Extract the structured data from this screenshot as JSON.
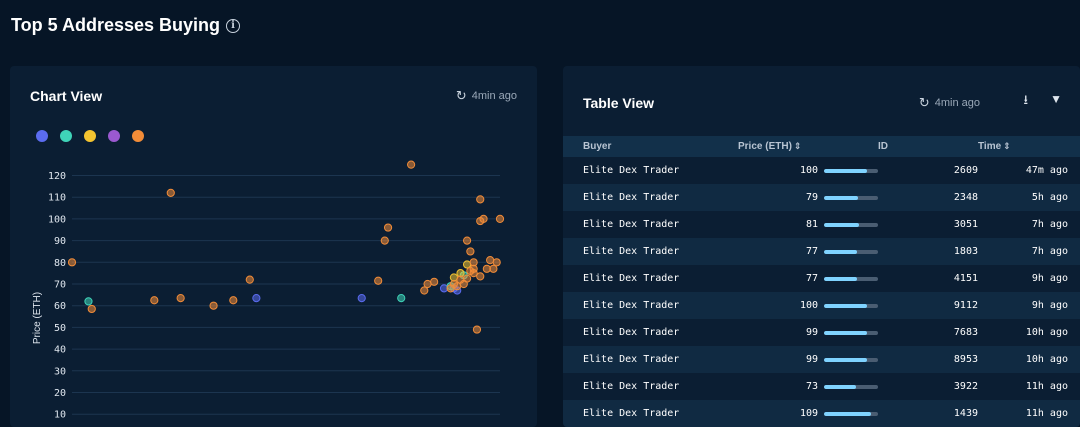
{
  "page": {
    "title": "Top 5 Addresses Buying"
  },
  "chart_panel": {
    "title": "Chart View",
    "updated": "4min ago"
  },
  "table_panel": {
    "title": "Table View",
    "updated": "4min ago"
  },
  "legend": [
    {
      "color": "#5b6cf0"
    },
    {
      "color": "#3fd4b8"
    },
    {
      "color": "#f4c430"
    },
    {
      "color": "#9b59d0"
    },
    {
      "color": "#f28c38"
    }
  ],
  "chart_data": {
    "type": "scatter",
    "ylabel": "Price (ETH)",
    "yticks": [
      120,
      110,
      100,
      90,
      80,
      70,
      60,
      50,
      40,
      30,
      20,
      10
    ],
    "ylim": [
      10,
      125
    ],
    "grid": true,
    "series": [
      {
        "color": "#5b6cf0",
        "points": [
          [
            56,
            63.5
          ],
          [
            88,
            63.5
          ],
          [
            117,
            67
          ],
          [
            113,
            68
          ],
          [
            116,
            68
          ]
        ]
      },
      {
        "color": "#3fd4b8",
        "points": [
          [
            5,
            62
          ],
          [
            100,
            63.5
          ],
          [
            115,
            69
          ],
          [
            119,
            74
          ]
        ]
      },
      {
        "color": "#f4c430",
        "points": [
          [
            118,
            75
          ],
          [
            116,
            73
          ],
          [
            120,
            79
          ]
        ]
      },
      {
        "color": "#9b59d0",
        "points": []
      },
      {
        "color": "#f28c38",
        "points": [
          [
            0,
            80
          ],
          [
            6,
            58.5
          ],
          [
            25,
            62.5
          ],
          [
            30,
            112
          ],
          [
            33,
            63.5
          ],
          [
            43,
            60
          ],
          [
            49,
            62.5
          ],
          [
            54,
            72
          ],
          [
            93,
            71.5
          ],
          [
            95,
            90
          ],
          [
            96,
            96
          ],
          [
            103,
            125
          ],
          [
            107,
            67
          ],
          [
            108,
            70
          ],
          [
            110,
            71
          ],
          [
            118,
            72
          ],
          [
            115,
            68
          ],
          [
            116,
            70
          ],
          [
            117,
            69
          ],
          [
            120,
            90
          ],
          [
            121,
            85
          ],
          [
            121,
            76
          ],
          [
            122,
            80
          ],
          [
            122,
            77
          ],
          [
            122,
            75
          ],
          [
            123,
            49
          ],
          [
            124,
            73.5
          ],
          [
            124,
            99
          ],
          [
            125,
            100
          ],
          [
            126,
            77
          ],
          [
            127,
            81
          ],
          [
            128,
            77
          ],
          [
            129,
            80
          ],
          [
            130,
            100
          ],
          [
            124,
            109
          ],
          [
            120,
            72.5
          ],
          [
            119,
            70
          ]
        ]
      }
    ]
  },
  "table": {
    "columns": {
      "buyer": "Buyer",
      "price": "Price (ETH)",
      "id": "ID",
      "time": "Time"
    },
    "price_max": 125,
    "rows": [
      {
        "buyer": "Elite Dex Trader",
        "price": "100",
        "id": "2609",
        "time": "47m ago"
      },
      {
        "buyer": "Elite Dex Trader",
        "price": "79",
        "id": "2348",
        "time": "5h ago"
      },
      {
        "buyer": "Elite Dex Trader",
        "price": "81",
        "id": "3051",
        "time": "7h ago"
      },
      {
        "buyer": "Elite Dex Trader",
        "price": "77",
        "id": "1803",
        "time": "7h ago"
      },
      {
        "buyer": "Elite Dex Trader",
        "price": "77",
        "id": "4151",
        "time": "9h ago"
      },
      {
        "buyer": "Elite Dex Trader",
        "price": "100",
        "id": "9112",
        "time": "9h ago"
      },
      {
        "buyer": "Elite Dex Trader",
        "price": "99",
        "id": "7683",
        "time": "10h ago"
      },
      {
        "buyer": "Elite Dex Trader",
        "price": "99",
        "id": "8953",
        "time": "10h ago"
      },
      {
        "buyer": "Elite Dex Trader",
        "price": "73",
        "id": "3922",
        "time": "11h ago"
      },
      {
        "buyer": "Elite Dex Trader",
        "price": "109",
        "id": "1439",
        "time": "11h ago"
      }
    ]
  }
}
